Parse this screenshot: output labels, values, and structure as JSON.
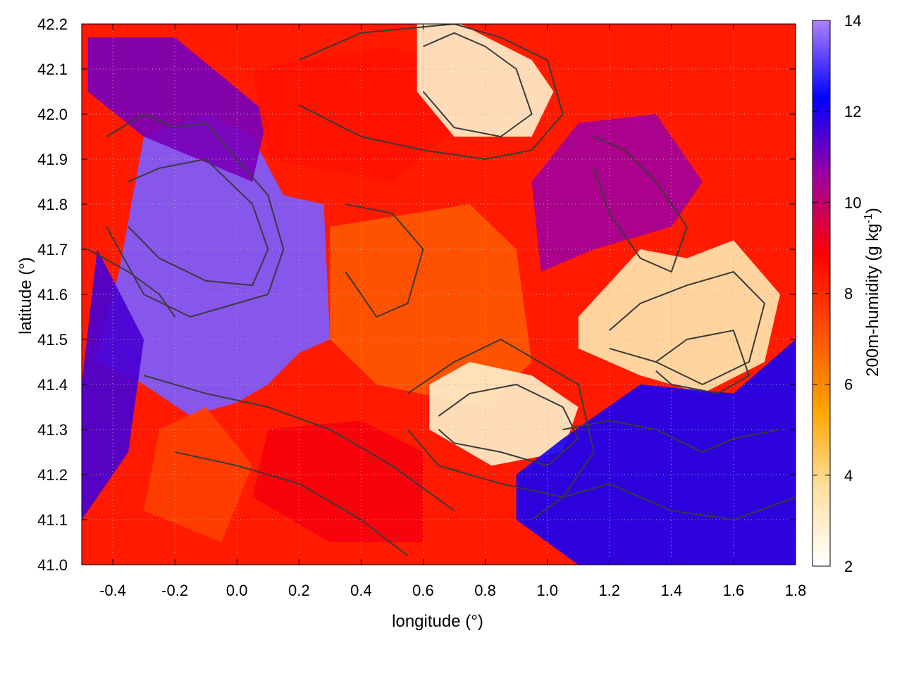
{
  "chart_data": {
    "type": "heatmap",
    "xlabel": "longitude (°)",
    "ylabel": "latitude (°)",
    "colorbar_label_prefix": "200m-humidity (g kg",
    "colorbar_label_sup": "-1",
    "colorbar_label_suffix": ")",
    "xlim": [
      -0.5,
      1.8
    ],
    "ylim": [
      41.0,
      42.2
    ],
    "clim": [
      2,
      14
    ],
    "x_ticks": [
      "-0.4",
      "-0.2",
      "0.0",
      "0.2",
      "0.4",
      "0.6",
      "0.8",
      "1.0",
      "1.2",
      "1.4",
      "1.6",
      "1.8"
    ],
    "y_ticks": [
      "41.0",
      "41.1",
      "41.2",
      "41.3",
      "41.4",
      "41.5",
      "41.6",
      "41.7",
      "41.8",
      "41.9",
      "42.0",
      "42.1",
      "42.2"
    ],
    "colorbar_ticks": [
      "2",
      "4",
      "6",
      "8",
      "10",
      "12",
      "14"
    ],
    "grid": true,
    "colormap": [
      "#ffffff",
      "#ffe0a0",
      "#ffa500",
      "#ff5000",
      "#ff0000",
      "#a000a0",
      "#0000ff",
      "#b080ff"
    ],
    "regions": [
      {
        "lon": [
          -0.46,
          -0.38,
          -0.3,
          -0.1,
          0.05,
          0.15,
          0.28,
          0.3,
          0.2,
          0.1,
          0.0,
          -0.15,
          -0.3,
          -0.44
        ],
        "lat": [
          41.45,
          41.65,
          41.95,
          42.0,
          41.95,
          41.82,
          41.8,
          41.5,
          41.47,
          41.4,
          41.36,
          41.33,
          41.4,
          41.45
        ],
        "humidity": 13.5
      },
      {
        "lon": [
          -0.5,
          -0.35,
          -0.3,
          -0.45,
          -0.5
        ],
        "lat": [
          41.1,
          41.25,
          41.5,
          41.7,
          41.4
        ],
        "humidity": 11.5
      },
      {
        "lon": [
          -0.48,
          -0.2,
          0.1,
          0.05,
          -0.3,
          -0.48
        ],
        "lat": [
          42.17,
          42.17,
          42.0,
          41.85,
          41.95,
          42.05
        ],
        "humidity": 11.0
      },
      {
        "lon": [
          0.05,
          0.5,
          0.85,
          0.5,
          0.1
        ],
        "lat": [
          42.1,
          42.15,
          42.05,
          41.85,
          41.9
        ],
        "humidity": 8.5
      },
      {
        "lon": [
          0.3,
          0.75,
          0.9,
          0.95,
          0.8,
          0.45,
          0.3
        ],
        "lat": [
          41.75,
          41.8,
          41.7,
          41.45,
          41.35,
          41.4,
          41.5
        ],
        "humidity": 7.0
      },
      {
        "lon": [
          0.58,
          0.72,
          0.95,
          1.02,
          0.95,
          0.7,
          0.58
        ],
        "lat": [
          42.2,
          42.2,
          42.12,
          42.05,
          41.95,
          41.95,
          42.05
        ],
        "humidity": 3.0
      },
      {
        "lon": [
          0.62,
          0.75,
          0.95,
          1.1,
          1.05,
          0.82,
          0.62
        ],
        "lat": [
          41.4,
          41.45,
          41.42,
          41.35,
          41.25,
          41.22,
          41.3
        ],
        "humidity": 3.0
      },
      {
        "lon": [
          1.1,
          1.3,
          1.45,
          1.6,
          1.75,
          1.7,
          1.5,
          1.3,
          1.1
        ],
        "lat": [
          41.55,
          41.7,
          41.68,
          41.72,
          41.6,
          41.45,
          41.38,
          41.42,
          41.48
        ],
        "humidity": 3.5
      },
      {
        "lon": [
          1.05,
          1.3,
          1.6,
          1.8,
          1.8,
          1.1,
          0.9,
          0.9
        ],
        "lat": [
          41.28,
          41.4,
          41.38,
          41.5,
          41.0,
          41.0,
          41.1,
          41.2
        ],
        "humidity": 12.0
      },
      {
        "lon": [
          0.95,
          1.1,
          1.35,
          1.5,
          1.4,
          1.15,
          0.98
        ],
        "lat": [
          41.85,
          41.98,
          42.0,
          41.85,
          41.75,
          41.7,
          41.65
        ],
        "humidity": 10.5
      },
      {
        "lon": [
          0.1,
          0.4,
          0.6,
          0.6,
          0.3,
          0.05
        ],
        "lat": [
          41.3,
          41.32,
          41.25,
          41.05,
          41.05,
          41.15
        ],
        "humidity": 9.0
      },
      {
        "lon": [
          -0.25,
          -0.1,
          0.05,
          -0.05,
          -0.3
        ],
        "lat": [
          41.3,
          41.35,
          41.22,
          41.05,
          41.12
        ],
        "humidity": 7.5
      }
    ],
    "contours": [
      {
        "lon": [
          -0.42,
          -0.3,
          -0.2,
          -0.1,
          0.0,
          0.1,
          0.15,
          0.1,
          0.0,
          -0.15,
          -0.3,
          -0.42
        ],
        "lat": [
          41.95,
          42.0,
          41.97,
          41.98,
          41.9,
          41.82,
          41.7,
          41.6,
          41.58,
          41.55,
          41.6,
          41.75
        ]
      },
      {
        "lon": [
          -0.35,
          -0.25,
          -0.1,
          0.05,
          0.1,
          0.05,
          -0.1,
          -0.25,
          -0.35
        ],
        "lat": [
          41.85,
          41.88,
          41.9,
          41.8,
          41.7,
          41.62,
          41.63,
          41.68,
          41.75
        ]
      },
      {
        "lon": [
          0.35,
          0.5,
          0.6,
          0.55,
          0.45,
          0.35
        ],
        "lat": [
          41.8,
          41.78,
          41.7,
          41.58,
          41.55,
          41.65
        ]
      },
      {
        "lon": [
          0.6,
          0.7,
          0.8,
          0.9,
          0.95,
          0.85,
          0.7,
          0.6
        ],
        "lat": [
          42.15,
          42.18,
          42.15,
          42.1,
          42.0,
          41.95,
          41.97,
          42.05
        ]
      },
      {
        "lon": [
          0.2,
          0.4,
          0.55,
          0.7,
          0.85,
          1.0,
          1.05,
          0.95,
          0.8,
          0.6,
          0.4,
          0.2
        ],
        "lat": [
          42.12,
          42.18,
          42.19,
          42.2,
          42.17,
          42.12,
          42.0,
          41.92,
          41.9,
          41.92,
          41.95,
          42.02
        ]
      },
      {
        "lon": [
          0.65,
          0.75,
          0.9,
          1.05,
          1.1,
          1.0,
          0.85,
          0.7,
          0.65
        ],
        "lat": [
          41.33,
          41.38,
          41.4,
          41.35,
          41.28,
          41.22,
          41.25,
          41.27,
          41.3
        ]
      },
      {
        "lon": [
          0.55,
          0.7,
          0.85,
          1.1,
          1.15,
          1.05,
          0.85,
          0.65,
          0.55
        ],
        "lat": [
          41.38,
          41.45,
          41.5,
          41.4,
          41.25,
          41.15,
          41.18,
          41.22,
          41.3
        ]
      },
      {
        "lon": [
          1.2,
          1.3,
          1.45,
          1.6,
          1.7,
          1.65,
          1.5,
          1.35,
          1.2
        ],
        "lat": [
          41.52,
          41.58,
          41.62,
          41.65,
          41.58,
          41.45,
          41.4,
          41.45,
          41.48
        ]
      },
      {
        "lon": [
          1.35,
          1.45,
          1.6,
          1.65,
          1.55,
          1.4,
          1.35
        ],
        "lat": [
          41.45,
          41.5,
          41.52,
          41.42,
          41.38,
          41.4,
          41.43
        ]
      },
      {
        "lon": [
          1.05,
          1.2,
          1.35,
          1.5,
          1.6,
          1.75
        ],
        "lat": [
          41.3,
          41.32,
          41.3,
          41.25,
          41.28,
          41.3
        ]
      },
      {
        "lon": [
          0.95,
          1.05,
          1.2,
          1.4,
          1.6,
          1.8
        ],
        "lat": [
          41.1,
          41.15,
          41.18,
          41.12,
          41.1,
          41.15
        ]
      },
      {
        "lon": [
          -0.3,
          -0.1,
          0.1,
          0.3,
          0.5,
          0.7
        ],
        "lat": [
          41.42,
          41.38,
          41.35,
          41.3,
          41.22,
          41.12
        ]
      },
      {
        "lon": [
          -0.2,
          0.0,
          0.2,
          0.4,
          0.55
        ],
        "lat": [
          41.25,
          41.22,
          41.18,
          41.1,
          41.02
        ]
      },
      {
        "lon": [
          1.15,
          1.25,
          1.35,
          1.45,
          1.4,
          1.3,
          1.2,
          1.15
        ],
        "lat": [
          41.95,
          41.92,
          41.85,
          41.75,
          41.65,
          41.68,
          41.78,
          41.88
        ]
      },
      {
        "lon": [
          -0.48,
          -0.35,
          -0.25,
          -0.2
        ],
        "lat": [
          41.7,
          41.65,
          41.6,
          41.55
        ]
      }
    ]
  }
}
